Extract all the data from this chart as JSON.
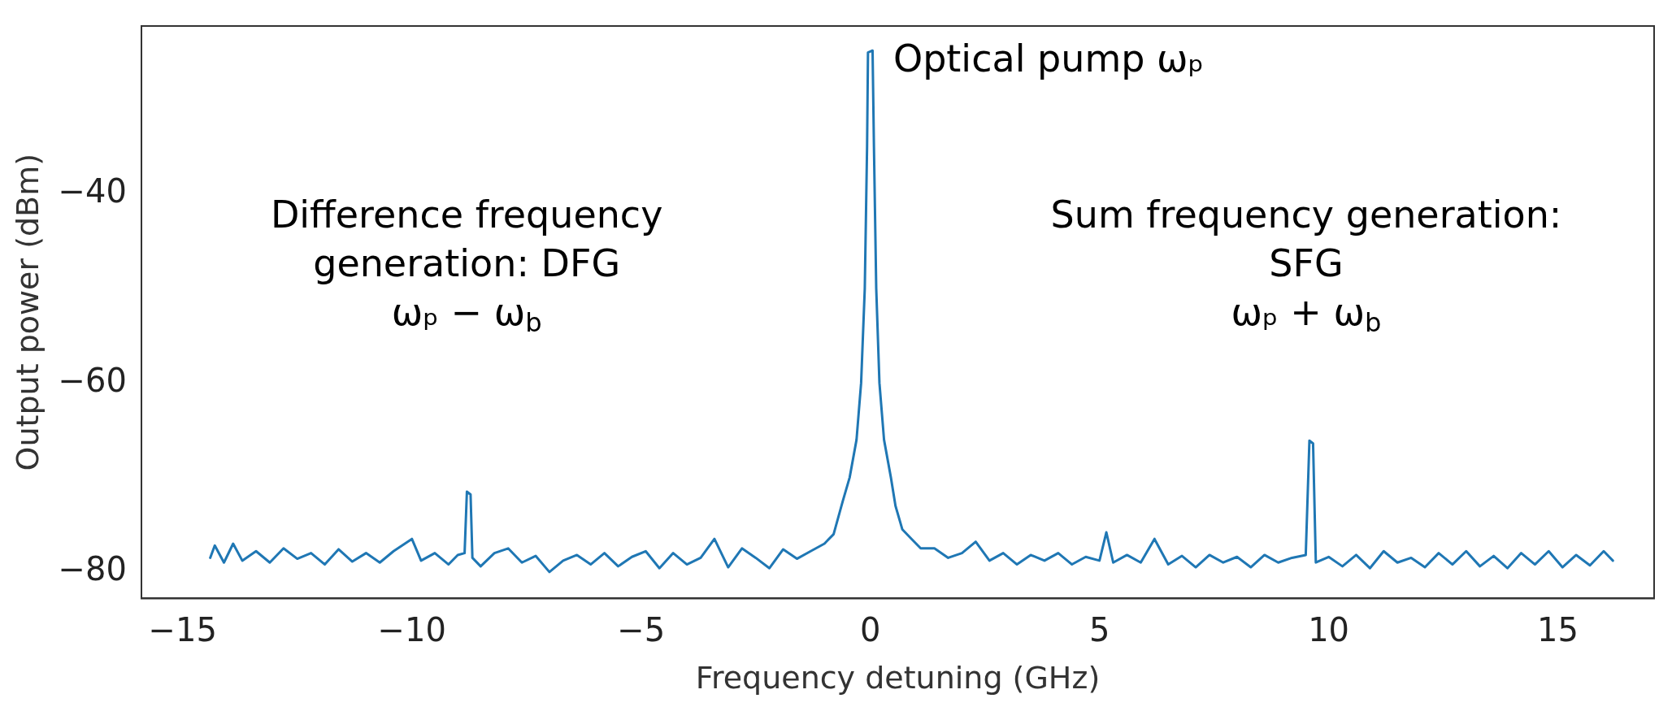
{
  "chart_data": {
    "type": "line",
    "xlabel": "Frequency detuning (GHz)",
    "ylabel": "Output power (dBm)",
    "xlim": [
      -15.9,
      17.1
    ],
    "ylim": [
      -82.8,
      -22.2
    ],
    "xticks": [
      {
        "value": -15,
        "label": "−15"
      },
      {
        "value": -10,
        "label": "−10"
      },
      {
        "value": -5,
        "label": "−5"
      },
      0,
      5,
      10,
      15
    ],
    "yticks": [
      {
        "value": -80,
        "label": "−80"
      },
      {
        "value": -60,
        "label": "−60"
      },
      {
        "value": -40,
        "label": "−40"
      }
    ],
    "grid": false,
    "legend": false,
    "marker": "none",
    "line_style": "solid",
    "annotations": [
      "Optical pump ωₚ",
      "Difference frequency\ngeneration: DFG\nωₚ − ω$_{b}$",
      "Sum frequency generation:\nSFG\nωₚ + ω$_{b}$"
    ],
    "series": [
      {
        "color": "#1f77b4",
        "x": [
          -14.4,
          -14.3,
          -14.1,
          -13.9,
          -13.7,
          -13.4,
          -13.1,
          -12.8,
          -12.5,
          -12.2,
          -11.9,
          -11.6,
          -11.3,
          -11.0,
          -10.7,
          -10.4,
          -10.0,
          -9.8,
          -9.5,
          -9.2,
          -9.0,
          -8.85,
          -8.8,
          -8.72,
          -8.68,
          -8.5,
          -8.2,
          -7.9,
          -7.6,
          -7.3,
          -7.0,
          -6.7,
          -6.4,
          -6.1,
          -5.8,
          -5.5,
          -5.2,
          -4.9,
          -4.6,
          -4.3,
          -4.0,
          -3.7,
          -3.4,
          -3.1,
          -2.8,
          -2.5,
          -2.2,
          -1.9,
          -1.6,
          -1.3,
          -1.0,
          -0.8,
          -0.6,
          -0.45,
          -0.3,
          -0.2,
          -0.12,
          -0.07,
          -0.05,
          0.05,
          0.08,
          0.13,
          0.2,
          0.3,
          0.45,
          0.55,
          0.7,
          0.9,
          1.1,
          1.4,
          1.7,
          2.0,
          2.3,
          2.6,
          2.9,
          3.2,
          3.5,
          3.8,
          4.1,
          4.4,
          4.7,
          5.0,
          5.15,
          5.3,
          5.6,
          5.9,
          6.2,
          6.5,
          6.8,
          7.1,
          7.4,
          7.7,
          8.0,
          8.3,
          8.6,
          8.9,
          9.2,
          9.5,
          9.58,
          9.66,
          9.72,
          10.0,
          10.3,
          10.6,
          10.9,
          11.2,
          11.5,
          11.8,
          12.1,
          12.4,
          12.7,
          13.0,
          13.3,
          13.6,
          13.9,
          14.2,
          14.5,
          14.8,
          15.1,
          15.4,
          15.7,
          16.0,
          16.2
        ],
        "values": [
          -78.5,
          -77.2,
          -79,
          -77,
          -78.8,
          -77.8,
          -79,
          -77.5,
          -78.6,
          -78,
          -79.2,
          -77.6,
          -78.9,
          -78,
          -79,
          -77.8,
          -76.5,
          -78.8,
          -78,
          -79.2,
          -78.2,
          -78,
          -71.5,
          -71.8,
          -78.5,
          -79.4,
          -78,
          -77.5,
          -79,
          -78.3,
          -80,
          -78.8,
          -78.2,
          -79.2,
          -78,
          -79.4,
          -78.4,
          -77.8,
          -79.6,
          -78,
          -79.2,
          -78.5,
          -76.5,
          -79.5,
          -77.5,
          -78.5,
          -79.6,
          -77.6,
          -78.6,
          -77.8,
          -77,
          -76,
          -72.5,
          -70,
          -66,
          -60,
          -50,
          -35,
          -25,
          -24.8,
          -35,
          -50,
          -60,
          -66,
          -70,
          -73,
          -75.5,
          -76.5,
          -77.5,
          -77.5,
          -78.5,
          -78,
          -76.8,
          -78.8,
          -78,
          -79.2,
          -78.2,
          -78.8,
          -78,
          -79.2,
          -78.4,
          -78.8,
          -75.8,
          -79,
          -78.2,
          -79,
          -76.5,
          -79.2,
          -78.3,
          -79.5,
          -78.2,
          -79,
          -78.4,
          -79.5,
          -78.2,
          -79,
          -78.5,
          -78.2,
          -66.1,
          -66.4,
          -79,
          -78.4,
          -79.4,
          -78.2,
          -79.6,
          -77.8,
          -79,
          -78.5,
          -79.5,
          -78,
          -79.2,
          -77.8,
          -79.4,
          -78.3,
          -79.6,
          -78,
          -79.2,
          -77.8,
          -79.5,
          -78.2,
          -79.3,
          -77.8,
          -78.8
        ]
      }
    ]
  }
}
